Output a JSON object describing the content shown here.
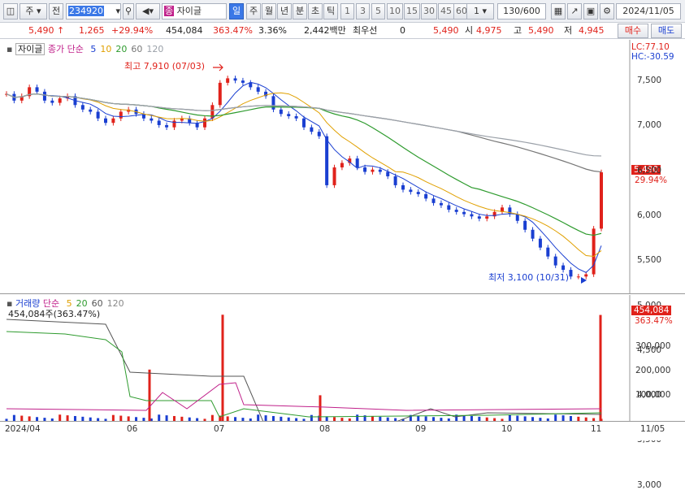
{
  "toolbar": {
    "type_label": "주",
    "prefix_label": "전",
    "stock_code": "234920",
    "stock_name_tag": "종",
    "stock_name": "자이글",
    "periods": [
      "일",
      "주",
      "월",
      "년",
      "분",
      "초",
      "틱"
    ],
    "active_period": "일",
    "intervals": [
      "1",
      "3",
      "5",
      "10",
      "15",
      "30",
      "45",
      "60"
    ],
    "count_spin": "1",
    "count_display": "130/600",
    "date": "2024/11/05"
  },
  "quote": {
    "price": "5,490",
    "arrow": "↑",
    "change": "1,265",
    "change_pct": "+29.94%",
    "volume": "454,084",
    "volume_pct": "363.47%",
    "turnover": "3.36%",
    "amount": "2,442백만",
    "priority_label": "최우선",
    "priority_value": "0",
    "ask_price": "5,490",
    "open_label": "시",
    "open": "4,975",
    "high_label": "고",
    "high": "5,490",
    "low_label": "저",
    "low": "4,945",
    "buy_label": "매수",
    "sell_label": "매도"
  },
  "price_pane": {
    "legend_name": "자이글",
    "legend_ma_label": "종가 단순",
    "ma_periods": [
      "5",
      "10",
      "20",
      "60",
      "120"
    ],
    "ma_colors": [
      "#1a3fd1",
      "#e0a000",
      "#2e9b2e",
      "#777777",
      "#9aa0a8"
    ],
    "lc": "LC:77.10",
    "hc": "HC:-30.59",
    "high_note": "최고 7,910 (07/03)",
    "low_note": "최저 3,100 (10/31)",
    "current_price_box": "5,490",
    "current_pct_box": "29.94%",
    "y_ticks": [
      "7,500",
      "7,000",
      "6,500",
      "6,000",
      "5,500",
      "5,000",
      "4,500",
      "4,000",
      "3,500",
      "3,000"
    ]
  },
  "volume_pane": {
    "legend_name": "거래량",
    "legend_ma_label": "단순",
    "ma_periods": [
      "5",
      "20",
      "60",
      "120"
    ],
    "legend_value": "454,084주(363.47%)",
    "current_volume_box": "454,084",
    "current_pct_box": "363.47%",
    "y_ticks": [
      "300,000",
      "200,000",
      "100,000"
    ]
  },
  "x_axis": {
    "labels": [
      "2024/04",
      "06",
      "07",
      "08",
      "09",
      "10",
      "11",
      "11/05"
    ]
  },
  "chart_data": {
    "type": "candlestick",
    "title": "자이글",
    "ylim": [
      2900,
      8100
    ],
    "x_labels": [
      "2024/04",
      "06",
      "07",
      "08",
      "09",
      "10",
      "11"
    ],
    "price_close_trend": [
      7250,
      7100,
      7200,
      7400,
      7300,
      7100,
      7050,
      7150,
      7200,
      7000,
      6900,
      6850,
      6700,
      6600,
      6700,
      6850,
      6900,
      6800,
      6700,
      6650,
      6550,
      6500,
      6650,
      6700,
      6600,
      6500,
      6700,
      7000,
      7500,
      7600,
      7550,
      7500,
      7400,
      7300,
      7200,
      6900,
      6800,
      6750,
      6700,
      6500,
      6400,
      6300,
      5200,
      5600,
      5700,
      5800,
      5600,
      5500,
      5550,
      5500,
      5400,
      5200,
      5100,
      5050,
      5000,
      4900,
      4800,
      4750,
      4650,
      4600,
      4550,
      4500,
      4450,
      4500,
      4600,
      4700,
      4550,
      4400,
      4200,
      4000,
      3800,
      3600,
      3400,
      3300,
      3150,
      3150,
      3200,
      4225,
      5490
    ],
    "volume_spikes": [
      {
        "label": "06",
        "value": 220000
      },
      {
        "label": "07",
        "value": 455000
      },
      {
        "label": "08",
        "value": 110000
      },
      {
        "label": "11/05",
        "value": 454084
      }
    ],
    "volume_ylim": [
      0,
      470000
    ]
  }
}
